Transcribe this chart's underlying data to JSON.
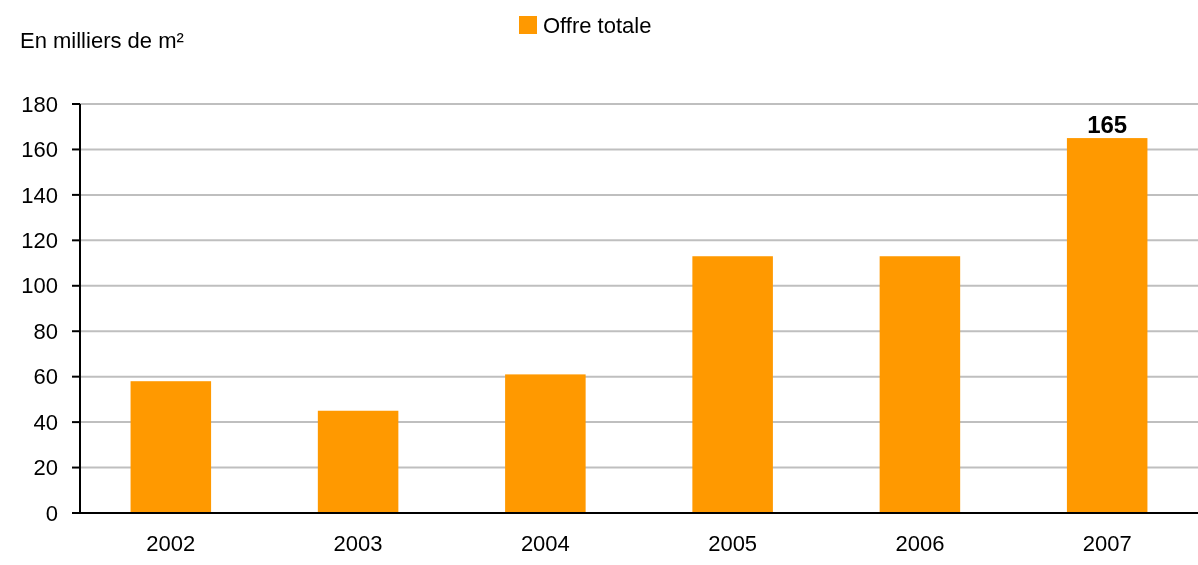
{
  "chart_data": {
    "type": "bar",
    "ylabel": "En milliers de m²",
    "categories": [
      "2002",
      "2003",
      "2004",
      "2005",
      "2006",
      "2007"
    ],
    "series": [
      {
        "name": "Offre totale",
        "color": "#ff9900",
        "values": [
          58,
          45,
          61,
          113,
          113,
          165
        ],
        "value_labels": [
          null,
          null,
          null,
          null,
          null,
          "165"
        ]
      }
    ],
    "ylim": [
      0,
      180
    ],
    "yticks": [
      0,
      20,
      40,
      60,
      80,
      100,
      120,
      140,
      160,
      180
    ],
    "grid": "y",
    "legend": "top"
  }
}
